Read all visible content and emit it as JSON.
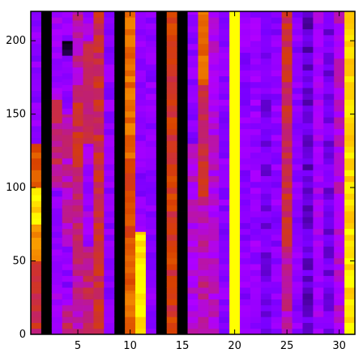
{
  "chart_data": {
    "type": "heatmap",
    "title": "",
    "xlabel": "",
    "ylabel": "",
    "xlim": [
      0.5,
      31.5
    ],
    "ylim": [
      0,
      220
    ],
    "x_ticks": [
      "5",
      "10",
      "15",
      "20",
      "25",
      "30"
    ],
    "y_ticks": [
      "0",
      "50",
      "100",
      "150",
      "200"
    ],
    "grid": false,
    "colormap": [
      "#000000",
      "#3a0080",
      "#7a00ff",
      "#b000ff",
      "#c02070",
      "#d84000",
      "#f08000",
      "#ffb000",
      "#ffff00"
    ],
    "columns": [
      {
        "x": 1,
        "segments": [
          {
            "y0": 0,
            "y1": 50,
            "v": 0.55
          },
          {
            "y0": 50,
            "y1": 75,
            "v": 0.8
          },
          {
            "y0": 75,
            "y1": 100,
            "v": 0.95
          },
          {
            "y0": 100,
            "y1": 130,
            "v": 0.65
          },
          {
            "y0": 130,
            "y1": 220,
            "v": 0.3
          }
        ]
      },
      {
        "x": 2,
        "segments": [
          {
            "y0": 0,
            "y1": 220,
            "v": 0.0
          }
        ]
      },
      {
        "x": 3,
        "segments": [
          {
            "y0": 0,
            "y1": 30,
            "v": 0.35
          },
          {
            "y0": 30,
            "y1": 100,
            "v": 0.3
          },
          {
            "y0": 100,
            "y1": 160,
            "v": 0.5
          },
          {
            "y0": 160,
            "y1": 220,
            "v": 0.35
          }
        ]
      },
      {
        "x": 4,
        "segments": [
          {
            "y0": 0,
            "y1": 20,
            "v": 0.5
          },
          {
            "y0": 20,
            "y1": 60,
            "v": 0.3
          },
          {
            "y0": 60,
            "y1": 150,
            "v": 0.45
          },
          {
            "y0": 150,
            "y1": 190,
            "v": 0.3
          },
          {
            "y0": 190,
            "y1": 200,
            "v": 0.05
          },
          {
            "y0": 200,
            "y1": 220,
            "v": 0.3
          }
        ]
      },
      {
        "x": 5,
        "segments": [
          {
            "y0": 0,
            "y1": 40,
            "v": 0.45
          },
          {
            "y0": 40,
            "y1": 110,
            "v": 0.5
          },
          {
            "y0": 110,
            "y1": 170,
            "v": 0.55
          },
          {
            "y0": 170,
            "y1": 220,
            "v": 0.45
          }
        ]
      },
      {
        "x": 6,
        "segments": [
          {
            "y0": 0,
            "y1": 60,
            "v": 0.5
          },
          {
            "y0": 60,
            "y1": 130,
            "v": 0.35
          },
          {
            "y0": 130,
            "y1": 200,
            "v": 0.5
          },
          {
            "y0": 200,
            "y1": 220,
            "v": 0.35
          }
        ]
      },
      {
        "x": 7,
        "segments": [
          {
            "y0": 0,
            "y1": 220,
            "v": 0.55
          }
        ]
      },
      {
        "x": 8,
        "segments": [
          {
            "y0": 0,
            "y1": 220,
            "v": 0.3
          }
        ]
      },
      {
        "x": 9,
        "segments": [
          {
            "y0": 0,
            "y1": 220,
            "v": 0.0
          }
        ]
      },
      {
        "x": 10,
        "segments": [
          {
            "y0": 0,
            "y1": 30,
            "v": 0.72
          },
          {
            "y0": 30,
            "y1": 120,
            "v": 0.65
          },
          {
            "y0": 120,
            "y1": 220,
            "v": 0.72
          }
        ]
      },
      {
        "x": 11,
        "segments": [
          {
            "y0": 0,
            "y1": 70,
            "v": 0.95
          },
          {
            "y0": 70,
            "y1": 120,
            "v": 0.3
          },
          {
            "y0": 120,
            "y1": 220,
            "v": 0.3
          }
        ]
      },
      {
        "x": 12,
        "segments": [
          {
            "y0": 0,
            "y1": 220,
            "v": 0.3
          }
        ]
      },
      {
        "x": 13,
        "segments": [
          {
            "y0": 0,
            "y1": 220,
            "v": 0.0
          }
        ]
      },
      {
        "x": 14,
        "segments": [
          {
            "y0": 0,
            "y1": 220,
            "v": 0.6
          }
        ]
      },
      {
        "x": 15,
        "segments": [
          {
            "y0": 0,
            "y1": 220,
            "v": 0.0
          }
        ]
      },
      {
        "x": 16,
        "segments": [
          {
            "y0": 0,
            "y1": 130,
            "v": 0.4
          },
          {
            "y0": 130,
            "y1": 220,
            "v": 0.3
          }
        ]
      },
      {
        "x": 17,
        "segments": [
          {
            "y0": 0,
            "y1": 90,
            "v": 0.45
          },
          {
            "y0": 90,
            "y1": 170,
            "v": 0.55
          },
          {
            "y0": 170,
            "y1": 220,
            "v": 0.7
          }
        ]
      },
      {
        "x": 18,
        "segments": [
          {
            "y0": 0,
            "y1": 220,
            "v": 0.4
          }
        ]
      },
      {
        "x": 19,
        "segments": [
          {
            "y0": 0,
            "y1": 220,
            "v": 0.3
          }
        ]
      },
      {
        "x": 20,
        "segments": [
          {
            "y0": 0,
            "y1": 220,
            "v": 1.0
          }
        ]
      },
      {
        "x": 21,
        "segments": [
          {
            "y0": 0,
            "y1": 220,
            "v": 0.3
          }
        ]
      },
      {
        "x": 22,
        "segments": [
          {
            "y0": 0,
            "y1": 220,
            "v": 0.32
          }
        ]
      },
      {
        "x": 23,
        "segments": [
          {
            "y0": 0,
            "y1": 220,
            "v": 0.25
          }
        ]
      },
      {
        "x": 24,
        "segments": [
          {
            "y0": 0,
            "y1": 220,
            "v": 0.3
          }
        ]
      },
      {
        "x": 25,
        "segments": [
          {
            "y0": 0,
            "y1": 60,
            "v": 0.45
          },
          {
            "y0": 60,
            "y1": 220,
            "v": 0.55
          }
        ]
      },
      {
        "x": 26,
        "segments": [
          {
            "y0": 0,
            "y1": 220,
            "v": 0.3
          }
        ]
      },
      {
        "x": 27,
        "segments": [
          {
            "y0": 0,
            "y1": 220,
            "v": 0.2
          }
        ]
      },
      {
        "x": 28,
        "segments": [
          {
            "y0": 0,
            "y1": 220,
            "v": 0.35
          }
        ]
      },
      {
        "x": 29,
        "segments": [
          {
            "y0": 0,
            "y1": 220,
            "v": 0.25
          }
        ]
      },
      {
        "x": 30,
        "segments": [
          {
            "y0": 0,
            "y1": 220,
            "v": 0.4
          }
        ]
      },
      {
        "x": 31,
        "segments": [
          {
            "y0": 0,
            "y1": 220,
            "v": 0.95
          }
        ]
      }
    ]
  }
}
